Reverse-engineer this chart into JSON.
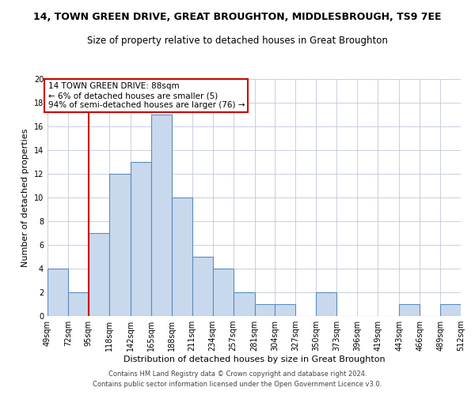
{
  "title": "14, TOWN GREEN DRIVE, GREAT BROUGHTON, MIDDLESBROUGH, TS9 7EE",
  "subtitle": "Size of property relative to detached houses in Great Broughton",
  "xlabel": "Distribution of detached houses by size in Great Broughton",
  "ylabel": "Number of detached properties",
  "bin_edges": [
    49,
    72,
    95,
    118,
    142,
    165,
    188,
    211,
    234,
    257,
    281,
    304,
    327,
    350,
    373,
    396,
    419,
    443,
    466,
    489,
    512
  ],
  "counts": [
    4,
    2,
    7,
    12,
    13,
    17,
    10,
    5,
    4,
    2,
    1,
    1,
    0,
    2,
    0,
    0,
    0,
    1,
    0,
    1
  ],
  "bar_color": "#c9d9ed",
  "bar_edge_color": "#5b8cbf",
  "grid_color": "#c0c8d8",
  "ref_line_x": 95,
  "ref_line_color": "#cc0000",
  "annotation_box_color": "#cc0000",
  "annotation_text_line1": "14 TOWN GREEN DRIVE: 88sqm",
  "annotation_text_line2": "← 6% of detached houses are smaller (5)",
  "annotation_text_line3": "94% of semi-detached houses are larger (76) →",
  "ylim": [
    0,
    20
  ],
  "yticks": [
    0,
    2,
    4,
    6,
    8,
    10,
    12,
    14,
    16,
    18,
    20
  ],
  "tick_labels": [
    "49sqm",
    "72sqm",
    "95sqm",
    "118sqm",
    "142sqm",
    "165sqm",
    "188sqm",
    "211sqm",
    "234sqm",
    "257sqm",
    "281sqm",
    "304sqm",
    "327sqm",
    "350sqm",
    "373sqm",
    "396sqm",
    "419sqm",
    "443sqm",
    "466sqm",
    "489sqm",
    "512sqm"
  ],
  "footnote1": "Contains HM Land Registry data © Crown copyright and database right 2024.",
  "footnote2": "Contains public sector information licensed under the Open Government Licence v3.0.",
  "title_fontsize": 9,
  "subtitle_fontsize": 8.5,
  "axis_label_fontsize": 8,
  "tick_fontsize": 7,
  "annotation_fontsize": 7.5,
  "footnote_fontsize": 6
}
